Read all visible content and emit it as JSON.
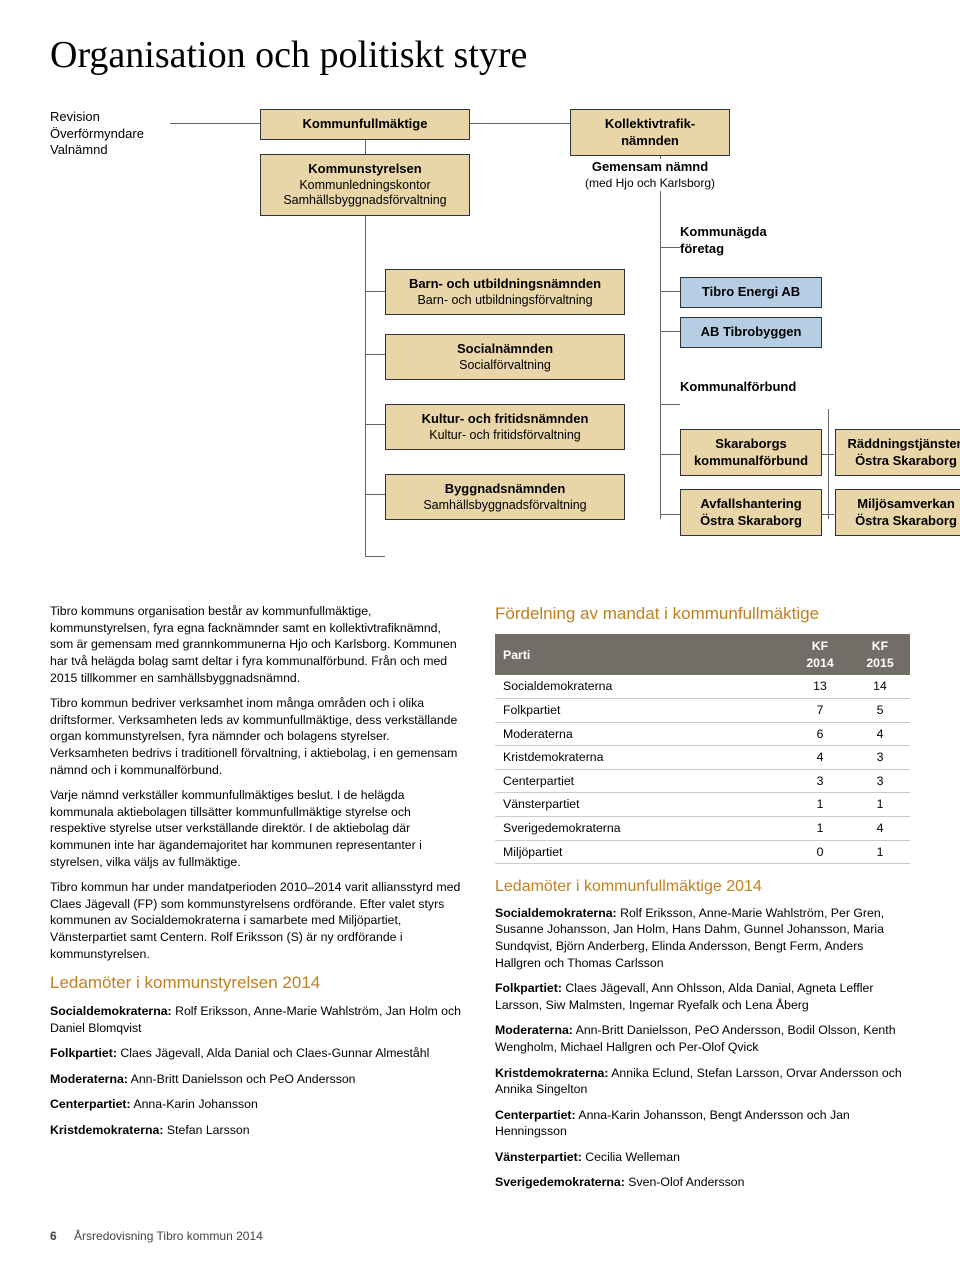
{
  "title": "Organisation och politiskt styre",
  "chart": {
    "left_col": {
      "l1": "Revision",
      "l2": "Överförmyndare",
      "l3": "Valnämnd"
    },
    "kf": "Kommunfullmäktige",
    "ks": {
      "head": "Kommunstyrelsen",
      "s1": "Kommunledningskontor",
      "s2": "Samhällsbyggnadsförvaltning"
    },
    "bun": {
      "head": "Barn- och utbildningsnämnden",
      "s1": "Barn- och utbildningsförvaltning"
    },
    "soc": {
      "head": "Socialnämnden",
      "s1": "Socialförvaltning"
    },
    "kfn": {
      "head": "Kultur- och fritidsnämnden",
      "s1": "Kultur- och fritidsförvaltning"
    },
    "byg": {
      "head": "Byggnadsnämnden",
      "s1": "Samhällsbyggnadsförvaltning"
    },
    "kt": {
      "head": "Kollektivtrafik-",
      "head2": "nämnden",
      "gn": "Gemensam nämnd",
      "gn2": "(med Hjo och Karlsborg)"
    },
    "kof": "Kommunägda",
    "kof2": "företag",
    "te": "Tibro Energi AB",
    "tb": "AB Tibrobyggen",
    "kforb": "Kommunalförbund",
    "skb": "Skaraborgs",
    "skb2": "kommunalförbund",
    "avf": "Avfallshantering",
    "avf2": "Östra Skaraborg",
    "radd": "Räddningstjänsten",
    "radd2": "Östra Skaraborg",
    "miljo": "Miljösamverkan",
    "miljo2": "Östra Skaraborg"
  },
  "body": {
    "p1": "Tibro kommuns organisation består av kommunfullmäktige, kommunstyrelsen, fyra egna facknämnder samt en kollektiv­trafiknämnd, som är gemensam med grannkommunerna Hjo och Karlsborg. Kommunen har två helägda bolag samt deltar i fyra kommunalförbund. Från och med 2015 tillkommer en samhällsbyggnadsnämnd.",
    "p2": "Tibro kommun bedriver verksamhet inom många områden och i olika driftsformer. Verksamheten leds av kommunfullmäktige, dess verkställande organ kommunstyrelsen, fyra nämnder och bolagens styrelser. Verksamheten bedrivs i traditionell förvaltning, i aktiebolag, i en gemensam nämnd och i kommunalförbund.",
    "p3": "Varje nämnd verkställer kommunfullmäktiges beslut. I de heläg­da kommunala aktiebolagen tillsätter kommunfullmäktige sty­relse och respektive styrelse utser verkställande direktör. I de aktiebolag där kommunen inte har ägandemajoritet har kom­munen representanter i styrelsen, vilka väljs av fullmäktige.",
    "p4": "Tibro kommun har under mandatperioden 2010–2014 varit alliansstyrd med Claes Jägevall (FP) som kommunstyrelsens ordförande. Efter valet styrs kommunen av Socialdemokraterna i samarbete med Miljöpartiet, Vänsterpartiet samt Centern. Rolf Eriksson (S) är ny ordförande i kommunstyrelsen."
  },
  "ks2014": {
    "heading": "Ledamöter i kommunstyrelsen 2014",
    "s": {
      "label": "Socialdemokraterna:",
      "text": " Rolf Eriksson, Anne-Marie Wahlström, Jan Holm och Daniel Blomqvist"
    },
    "fp": {
      "label": "Folkpartiet:",
      "text": " Claes Jägevall, Alda Danial och Claes-Gunnar Almeståhl"
    },
    "m": {
      "label": "Moderaterna:",
      "text": " Ann-Britt Danielsson och PeO Andersson"
    },
    "c": {
      "label": "Centerpartiet:",
      "text": " Anna-Karin Johansson"
    },
    "kd": {
      "label": "Kristdemokraterna:",
      "text": " Stefan Larsson"
    }
  },
  "mandat": {
    "heading": "Fördelning av mandat i kommunfullmäktige",
    "h1": "Parti",
    "h2": "KF 2014",
    "h3": "KF 2015",
    "rows": [
      {
        "p": "Socialdemokraterna",
        "a": "13",
        "b": "14"
      },
      {
        "p": "Folkpartiet",
        "a": "7",
        "b": "5"
      },
      {
        "p": "Moderaterna",
        "a": "6",
        "b": "4"
      },
      {
        "p": "Kristdemokraterna",
        "a": "4",
        "b": "3"
      },
      {
        "p": "Centerpartiet",
        "a": "3",
        "b": "3"
      },
      {
        "p": "Vänsterpartiet",
        "a": "1",
        "b": "1"
      },
      {
        "p": "Sverigedemokraterna",
        "a": "1",
        "b": "4"
      },
      {
        "p": "Miljöpartiet",
        "a": "0",
        "b": "1"
      }
    ]
  },
  "kf2014": {
    "heading": "Ledamöter i kommunfullmäktige 2014",
    "s": {
      "label": "Socialdemokraterna:",
      "text": " Rolf Eriksson, Anne-Marie Wahlström, Per Gren, Susanne Johansson, Jan Holm, Hans Dahm, Gunnel Johansson, Maria Sundqvist, Björn Anderberg, Elinda Anders­son, Bengt Ferm, Anders Hallgren och Thomas Carlsson"
    },
    "fp": {
      "label": "Folkpartiet:",
      "text": " Claes Jägevall, Ann Ohlsson, Alda Danial, Agneta Leffler Larsson, Siw Malmsten, Ingemar Ryefalk och Lena Åberg"
    },
    "m": {
      "label": "Moderaterna:",
      "text": " Ann-Britt Danielsson, PeO Andersson, Bodil Olsson, Kenth Wengholm, Michael Hallgren och Per-Olof Qvick"
    },
    "kd": {
      "label": "Kristdemokraterna:",
      "text": " Annika Eclund, Stefan Larsson, Orvar Andersson och Annika Singelton"
    },
    "c": {
      "label": "Centerpartiet:",
      "text": " Anna-Karin Johansson, Bengt Andersson och Jan Henningsson"
    },
    "v": {
      "label": "Vänsterpartiet:",
      "text": " Cecilia Welleman"
    },
    "sd": {
      "label": "Sverigedemokraterna:",
      "text": " Sven-Olof Andersson"
    }
  },
  "footer": {
    "page": "6",
    "doc": "Årsredovisning Tibro kommun 2014"
  }
}
